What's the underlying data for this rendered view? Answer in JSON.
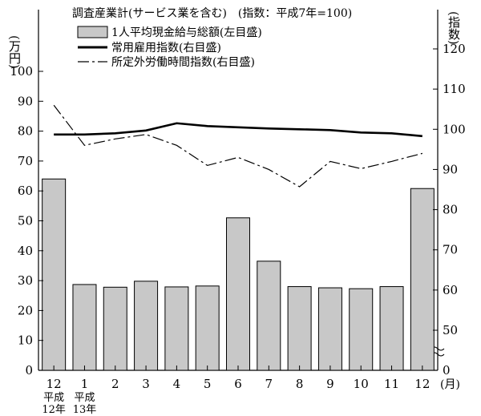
{
  "chart_data": {
    "type": "bar",
    "title": "調査産業計(サービス業を含む)　(指数：平成7年=100)",
    "categories": [
      "12",
      "1",
      "2",
      "3",
      "4",
      "5",
      "6",
      "7",
      "8",
      "9",
      "10",
      "11",
      "12"
    ],
    "category_sublabels": [
      [
        "平成",
        "12年"
      ],
      [
        "平成",
        "13年"
      ],
      [],
      [],
      [],
      [],
      [],
      [],
      [],
      [],
      [],
      [],
      []
    ],
    "x_unit_label": "(月)",
    "left_axis": {
      "label": "(万円)",
      "ylim": [
        0,
        120
      ],
      "ticks": [
        0,
        10,
        20,
        30,
        40,
        50,
        60,
        70,
        80,
        90,
        100
      ]
    },
    "right_axis": {
      "label": "(指数)",
      "ylim": [
        80,
        120
      ],
      "ticks": [
        50,
        60,
        70,
        80,
        90,
        100,
        110,
        120
      ],
      "zero_label": "0",
      "axis_break": true
    },
    "series": [
      {
        "name": "1人平均現金給与総額(左目盛)",
        "kind": "bar",
        "axis": "left",
        "color": "#c8c8c8",
        "values": [
          64.0,
          28.7,
          27.8,
          29.8,
          27.9,
          28.2,
          51.0,
          36.5,
          28.0,
          27.6,
          27.3,
          28.0,
          60.8
        ]
      },
      {
        "name": "常用雇用指数(右目盛)",
        "kind": "line",
        "axis": "right",
        "style": "solid",
        "color": "#000000",
        "values": [
          98.7,
          98.7,
          99.0,
          99.7,
          101.5,
          100.8,
          100.5,
          100.2,
          100.0,
          99.8,
          99.2,
          99.0,
          98.3
        ]
      },
      {
        "name": "所定外労働時間指数(右目盛)",
        "kind": "line",
        "axis": "right",
        "style": "dashed",
        "color": "#000000",
        "values": [
          106.0,
          96.0,
          97.6,
          98.7,
          96.0,
          91.0,
          93.0,
          90.0,
          85.7,
          92.0,
          90.2,
          92.0,
          94.0
        ]
      }
    ],
    "legend_position": "top-center",
    "grid": false
  }
}
